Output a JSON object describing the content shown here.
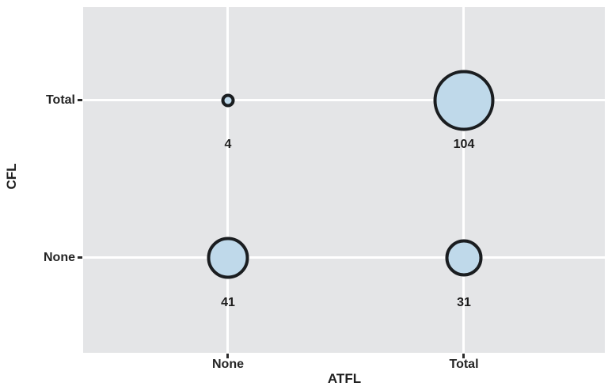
{
  "chart_data": {
    "type": "scatter",
    "variant": "balloon-plot",
    "title": "",
    "xlabel": "ATFL",
    "ylabel": "CFL",
    "x_categories": [
      "None",
      "Total"
    ],
    "y_categories_top_to_bottom": [
      "Total",
      "None"
    ],
    "points": [
      {
        "x": "None",
        "y": "Total",
        "count": 4
      },
      {
        "x": "Total",
        "y": "Total",
        "count": 104
      },
      {
        "x": "None",
        "y": "None",
        "count": 41
      },
      {
        "x": "Total",
        "y": "None",
        "count": 31
      }
    ],
    "size_encoding": "bubble area proportional to count",
    "grid": "major gridlines only, white on gray panel",
    "legend": false,
    "colors": {
      "panel_background": "#E4E5E7",
      "gridline": "#FFFFFF",
      "bubble_fill": "#BFD9EA",
      "bubble_stroke": "#1A1D20",
      "text": "#1F1F1F",
      "page_background": "#FFFFFF"
    }
  }
}
